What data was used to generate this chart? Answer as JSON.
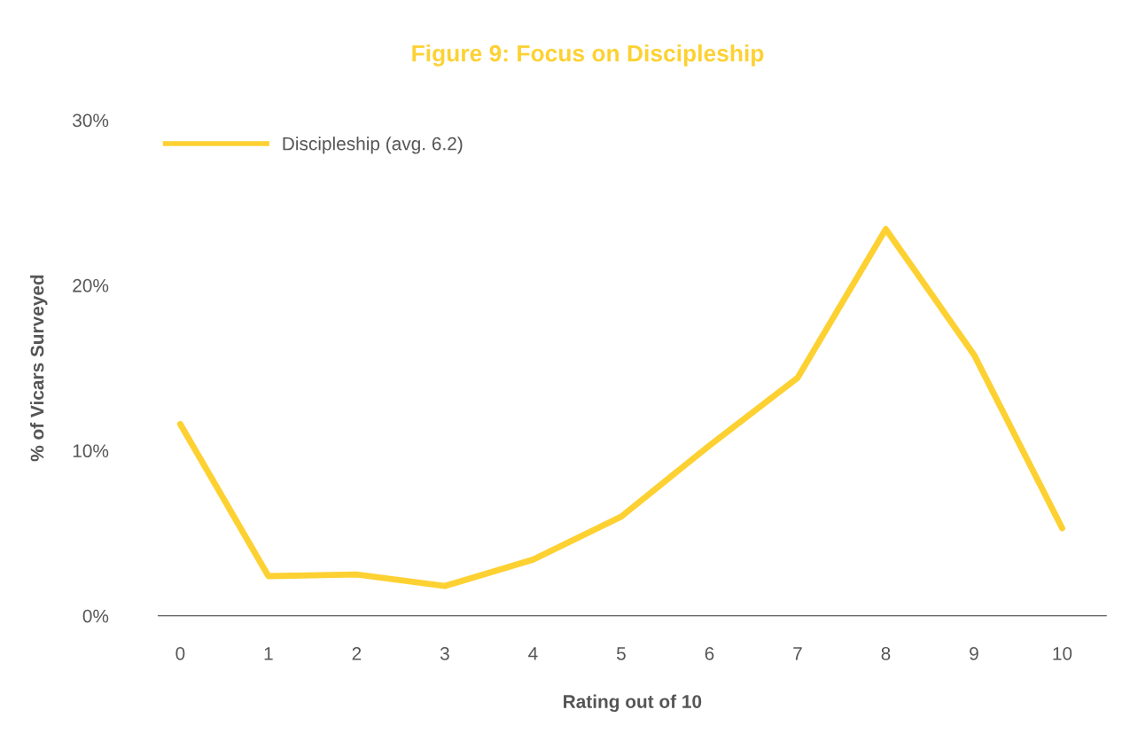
{
  "chart_data": {
    "type": "line",
    "title": "Figure 9: Focus on Discipleship",
    "xlabel": "Rating out of 10",
    "ylabel": "% of Vicars Surveyed",
    "categories": [
      "0",
      "1",
      "2",
      "3",
      "4",
      "5",
      "6",
      "7",
      "8",
      "9",
      "10"
    ],
    "series": [
      {
        "name": "Discipleship (avg. 6.2)",
        "color": "#fdd132",
        "values": [
          11.6,
          2.4,
          2.5,
          1.8,
          3.4,
          6.0,
          10.3,
          14.4,
          23.4,
          15.8,
          5.3
        ]
      }
    ],
    "ylim": [
      0,
      30
    ],
    "yticks": [
      {
        "value": 0,
        "label": "0%"
      },
      {
        "value": 10,
        "label": "10%"
      },
      {
        "value": 20,
        "label": "20%"
      },
      {
        "value": 30,
        "label": "30%"
      }
    ],
    "grid": false,
    "legend": "top left",
    "marker": "none",
    "line_style": "solid"
  }
}
